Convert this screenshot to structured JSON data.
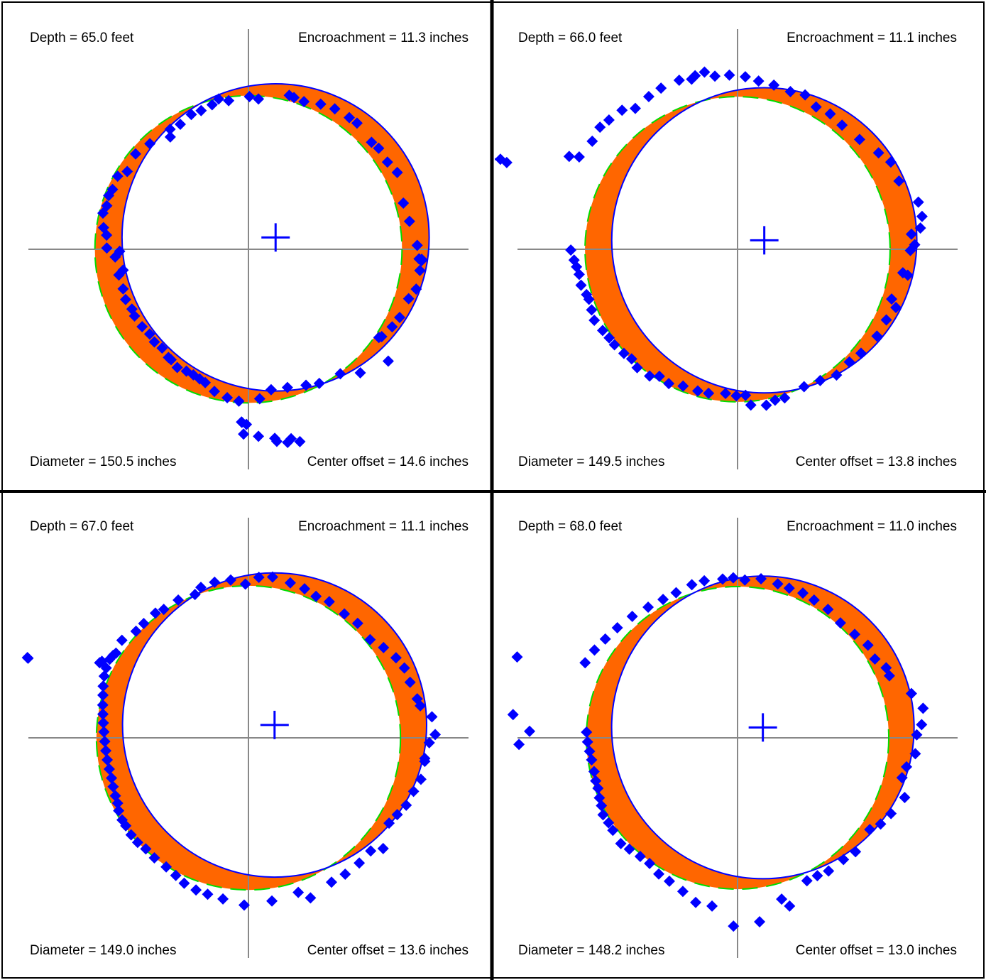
{
  "colors": {
    "points": "#0000ff",
    "fit_circle": "#0000ff",
    "nominal_circle": "#00dd00",
    "encroachment_fill": "#ff6600",
    "axes": "#888888",
    "borders": "#000000"
  },
  "panels": [
    {
      "depth_label": "Depth = 65.0 feet",
      "encroachment_label": "Encroachment = 11.3 inches",
      "diameter_label": "Diameter = 150.5 inches",
      "offset_label": "Center offset = 14.6 inches"
    },
    {
      "depth_label": "Depth = 66.0 feet",
      "encroachment_label": "Encroachment = 11.1 inches",
      "diameter_label": "Diameter = 149.5 inches",
      "offset_label": "Center offset = 13.8 inches"
    },
    {
      "depth_label": "Depth = 67.0 feet",
      "encroachment_label": "Encroachment = 11.1 inches",
      "diameter_label": "Diameter = 149.0 inches",
      "offset_label": "Center offset = 13.6 inches"
    },
    {
      "depth_label": "Depth = 68.0 feet",
      "encroachment_label": "Encroachment = 11.0 inches",
      "diameter_label": "Diameter = 148.2 inches",
      "offset_label": "Center offset = 13.0 inches"
    }
  ],
  "chart_data": [
    {
      "type": "scatter",
      "depth_ft": 65.0,
      "encroachment_in": 11.3,
      "diameter_in": 150.5,
      "center_offset_in": 14.6,
      "nominal_diameter_in": 150.5,
      "fit_center": [
        13.3,
        5.8
      ],
      "grid": false,
      "points": [
        [
          -14.6,
          73.6
        ],
        [
          -9.7,
          72.8
        ],
        [
          0.5,
          74.8
        ],
        [
          4.9,
          73.6
        ],
        [
          20,
          75.4
        ],
        [
          22.3,
          74.3
        ],
        [
          27.2,
          72.3
        ],
        [
          35.4,
          71.1
        ],
        [
          42.3,
          68.8
        ],
        [
          49.4,
          64.5
        ],
        [
          53.2,
          61.8
        ],
        [
          60.3,
          52.4
        ],
        [
          63.8,
          49.5
        ],
        [
          68.1,
          42.7
        ],
        [
          72.9,
          37.6
        ],
        [
          75.9,
          22.6
        ],
        [
          78.9,
          13.7
        ],
        [
          82.7,
          1.9
        ],
        [
          83.6,
          -4.7
        ],
        [
          84.8,
          -5.6
        ],
        [
          84.9,
          -4.9
        ],
        [
          84,
          -10.4
        ],
        [
          82.2,
          -19.5
        ],
        [
          78.5,
          -24.2
        ],
        [
          74.1,
          -33.4
        ],
        [
          70.4,
          -38
        ],
        [
          63.9,
          -43.2
        ],
        [
          65.3,
          -42.8
        ],
        [
          68.5,
          -54.8
        ],
        [
          54.8,
          -60.5
        ],
        [
          45,
          -61
        ],
        [
          34.7,
          -65.7
        ],
        [
          28.2,
          -66.6
        ],
        [
          19.1,
          -67.7
        ],
        [
          11.1,
          -68.8
        ],
        [
          5.5,
          -73.2
        ],
        [
          -4.7,
          -74.4
        ],
        [
          -10.4,
          -72.7
        ],
        [
          -16.7,
          -69.6
        ],
        [
          -21.2,
          -65.3
        ],
        [
          -23.9,
          -63.5
        ],
        [
          -27,
          -61.5
        ],
        [
          -30.4,
          -59.7
        ],
        [
          -34.9,
          -57.9
        ],
        [
          -37.9,
          -54.1
        ],
        [
          -39.2,
          -53
        ],
        [
          -42.3,
          -48.4
        ],
        [
          -46.1,
          -45.4
        ],
        [
          -48.4,
          -41.5
        ],
        [
          -52.1,
          -37.9
        ],
        [
          -55.8,
          -32.7
        ],
        [
          -57.1,
          -29.3
        ],
        [
          -60.2,
          -24.6
        ],
        [
          -61.4,
          -19.4
        ],
        [
          -63.5,
          -12.6
        ],
        [
          -61.4,
          -10.2
        ],
        [
          -65.3,
          -3.8
        ],
        [
          -63.1,
          -1
        ],
        [
          -69.4,
          0.6
        ],
        [
          -69.5,
          6.9
        ],
        [
          -71,
          10.6
        ],
        [
          -71.3,
          17.7
        ],
        [
          -69.4,
          21.3
        ],
        [
          -64.1,
          35.8
        ],
        [
          -66.6,
          29.3
        ],
        [
          -68.5,
          26.3
        ],
        [
          -59.4,
          38.1
        ],
        [
          -55.3,
          46.7
        ],
        [
          -48.3,
          51.7
        ],
        [
          -38.3,
          55
        ],
        [
          -38.4,
          58.8
        ],
        [
          -33.4,
          61.2
        ],
        [
          -28,
          66
        ],
        [
          -23.2,
          67.9
        ],
        [
          -17.8,
          70.8
        ],
        [
          -3.4,
          -84.6
        ],
        [
          -3.2,
          -84.8
        ],
        [
          -1,
          -85.8
        ],
        [
          4.9,
          -91.6
        ],
        [
          -2.4,
          -90.5
        ],
        [
          13.9,
          -94.1
        ],
        [
          12.9,
          -92.6
        ],
        [
          19.2,
          -94.6
        ],
        [
          20.9,
          -92.8
        ],
        [
          25.2,
          -94.2
        ]
      ]
    },
    {
      "type": "scatter",
      "depth_ft": 66.0,
      "encroachment_in": 11.1,
      "diameter_in": 149.5,
      "center_offset_in": 13.8,
      "nominal_diameter_in": 149.5,
      "fit_center": [
        13.1,
        4.4
      ],
      "grid": false,
      "points": [
        [
          -116.2,
          44.1
        ],
        [
          -121.1,
          44.1
        ],
        [
          -113.1,
          42.5
        ],
        [
          -82.5,
          45.5
        ],
        [
          -77.6,
          45.2
        ],
        [
          -71.2,
          52.9
        ],
        [
          -67.4,
          59.8
        ],
        [
          -63,
          63.3
        ],
        [
          -56.6,
          68.1
        ],
        [
          -50.1,
          69
        ],
        [
          -43.5,
          74.8
        ],
        [
          -37.5,
          78.9
        ],
        [
          -28.6,
          82.8
        ],
        [
          -22.5,
          83.3
        ],
        [
          -20.8,
          85
        ],
        [
          -16.2,
          86.8
        ],
        [
          -11.1,
          84.8
        ],
        [
          -4,
          85.3
        ],
        [
          3.8,
          84.5
        ],
        [
          10.3,
          82.4
        ],
        [
          17.8,
          80.4
        ],
        [
          25.9,
          77.2
        ],
        [
          33.1,
          75.6
        ],
        [
          38.5,
          69.7
        ],
        [
          45.4,
          66.3
        ],
        [
          51.2,
          60.8
        ],
        [
          59.8,
          53.8
        ],
        [
          69.1,
          47.2
        ],
        [
          75.1,
          42.7
        ],
        [
          79.1,
          33.4
        ],
        [
          88.6,
          23.1
        ],
        [
          90.4,
          16.1
        ],
        [
          89.6,
          10.4
        ],
        [
          85.2,
          7.4
        ],
        [
          86.8,
          2.2
        ],
        [
          84.7,
          -0.6
        ],
        [
          81,
          -11.5
        ],
        [
          83.4,
          -12.7
        ],
        [
          75.5,
          -24.4
        ],
        [
          77.6,
          -28.5
        ],
        [
          72.9,
          -34.6
        ],
        [
          68.3,
          -42.5
        ],
        [
          60.5,
          -50.9
        ],
        [
          54.8,
          -55.2
        ],
        [
          48.5,
          -61.6
        ],
        [
          40.5,
          -64.3
        ],
        [
          32.6,
          -67.3
        ],
        [
          23.1,
          -72.8
        ],
        [
          18.4,
          -73.9
        ],
        [
          14.1,
          -76.4
        ],
        [
          6.5,
          -76.3
        ],
        [
          3.9,
          -71.5
        ],
        [
          -0.6,
          -71.8
        ],
        [
          -5.9,
          -70.6
        ],
        [
          -14.2,
          -70.5
        ],
        [
          -19.5,
          -69.4
        ],
        [
          -26.7,
          -67
        ],
        [
          -33.7,
          -65.8
        ],
        [
          -38.3,
          -62.2
        ],
        [
          -43.1,
          -62.1
        ],
        [
          -49.2,
          -58
        ],
        [
          -51.9,
          -53.7
        ],
        [
          -55.7,
          -51
        ],
        [
          -60.3,
          -46.8
        ],
        [
          -62.9,
          -43.4
        ],
        [
          -66.1,
          -39.8
        ],
        [
          -70.2,
          -34.8
        ],
        [
          -71.5,
          -29.7
        ],
        [
          -72.8,
          -24.5
        ],
        [
          -74,
          -22.2
        ],
        [
          -76.7,
          -17.6
        ],
        [
          -77.6,
          -12.3
        ],
        [
          -78.9,
          -8.6
        ],
        [
          -80.1,
          -5.3
        ],
        [
          -81.7,
          -0.4
        ]
      ]
    },
    {
      "type": "scatter",
      "depth_ft": 67.0,
      "encroachment_in": 11.1,
      "diameter_in": 149.0,
      "center_offset_in": 13.6,
      "nominal_diameter_in": 149.0,
      "fit_center": [
        12.8,
        6.3
      ],
      "grid": false,
      "points": [
        [
          -108.3,
          39.3
        ],
        [
          -108,
          39
        ],
        [
          -72.9,
          36.8
        ],
        [
          -71.8,
          37.5
        ],
        [
          -66.3,
          40.4
        ],
        [
          -62,
          47.8
        ],
        [
          -55.1,
          52.2
        ],
        [
          -51.3,
          56
        ],
        [
          -45.6,
          61.1
        ],
        [
          -41.5,
          62.9
        ],
        [
          -34.4,
          67.5
        ],
        [
          -26.2,
          70.2
        ],
        [
          -23.3,
          73.7
        ],
        [
          -16.6,
          76.2
        ],
        [
          -8.7,
          77.3
        ],
        [
          -1.5,
          75.3
        ],
        [
          5.1,
          78.6
        ],
        [
          11.8,
          78.8
        ],
        [
          20.5,
          75.9
        ],
        [
          27.5,
          73
        ],
        [
          33.1,
          69.3
        ],
        [
          39.6,
          66.7
        ],
        [
          47,
          60.7
        ],
        [
          53.5,
          56.1
        ],
        [
          59.6,
          48.1
        ],
        [
          66.2,
          44.2
        ],
        [
          72.3,
          39.2
        ],
        [
          76.4,
          34.2
        ],
        [
          79.2,
          27.2
        ],
        [
          82.7,
          19.1
        ],
        [
          84.2,
          15.7
        ],
        [
          89.9,
          10.3
        ],
        [
          91.5,
          1.6
        ],
        [
          88.6,
          -2.4
        ],
        [
          86.4,
          -10.1
        ],
        [
          86.4,
          -11.5
        ],
        [
          84.5,
          -20.3
        ],
        [
          80.9,
          -26.2
        ],
        [
          77.3,
          -33
        ],
        [
          72.9,
          -37.6
        ],
        [
          68.9,
          -41.8
        ],
        [
          66,
          -54.2
        ],
        [
          59.9,
          -55.4
        ],
        [
          54.3,
          -61.3
        ],
        [
          47.4,
          -66.8
        ],
        [
          40.7,
          -70.7
        ],
        [
          30.4,
          -78.4
        ],
        [
          24.4,
          -75.7
        ],
        [
          11.5,
          -79.9
        ],
        [
          -2.1,
          -81.9
        ],
        [
          -12.5,
          -78.9
        ],
        [
          -20,
          -76.6
        ],
        [
          -25.7,
          -74.5
        ],
        [
          -31.5,
          -71.2
        ],
        [
          -35.6,
          -67.4
        ],
        [
          -40.3,
          -63.2
        ],
        [
          -46.1,
          -58.8
        ],
        [
          -50.3,
          -54.4
        ],
        [
          -54.3,
          -51.2
        ],
        [
          -57.5,
          -47.5
        ],
        [
          -60.1,
          -43.1
        ],
        [
          -61.9,
          -40.2
        ],
        [
          -63.6,
          -35.7
        ],
        [
          -64.1,
          -32
        ],
        [
          -65.2,
          -28.4
        ],
        [
          -66.3,
          -23.9
        ],
        [
          -67.1,
          -19.7
        ],
        [
          -68.2,
          -15.3
        ],
        [
          -69.2,
          -10.8
        ],
        [
          -69.9,
          -6.3
        ],
        [
          -70.4,
          -1.8
        ],
        [
          -70.8,
          2.9
        ],
        [
          -71.1,
          7.3
        ],
        [
          -71.3,
          11.6
        ],
        [
          -71.4,
          16.1
        ],
        [
          -71.3,
          20.9
        ],
        [
          -71.2,
          25.3
        ],
        [
          -70.7,
          30.2
        ],
        [
          -69.7,
          34.2
        ],
        [
          -68,
          38.5
        ],
        [
          -64.9,
          41.5
        ]
      ]
    },
    {
      "type": "scatter",
      "depth_ft": 68.0,
      "encroachment_in": 11.0,
      "diameter_in": 148.2,
      "center_offset_in": 13.0,
      "nominal_diameter_in": 148.2,
      "fit_center": [
        12.4,
        5.1
      ],
      "grid": false,
      "points": [
        [
          -108,
          39.6
        ],
        [
          -110,
          11.4
        ],
        [
          -101.9,
          3.2
        ],
        [
          -107.1,
          -3.2
        ],
        [
          -74.7,
          36.8
        ],
        [
          -70.1,
          43
        ],
        [
          -64.8,
          48.4
        ],
        [
          -58.9,
          53.9
        ],
        [
          -51.6,
          59.5
        ],
        [
          -43.8,
          64
        ],
        [
          -36.5,
          67.8
        ],
        [
          -30.1,
          71.1
        ],
        [
          -22.4,
          75
        ],
        [
          -16.3,
          76.9
        ],
        [
          -7.3,
          77.8
        ],
        [
          -2.1,
          78.4
        ],
        [
          3.6,
          77.3
        ],
        [
          11.5,
          77.9
        ],
        [
          19.7,
          75.4
        ],
        [
          25.3,
          73.3
        ],
        [
          32,
          70.9
        ],
        [
          37.5,
          67.5
        ],
        [
          44.3,
          62.9
        ],
        [
          50.4,
          56.3
        ],
        [
          57.4,
          50.7
        ],
        [
          63.9,
          45.4
        ],
        [
          67.3,
          38.6
        ],
        [
          72.8,
          34.3
        ],
        [
          74.4,
          30.4
        ],
        [
          85.2,
          21.7
        ],
        [
          90.9,
          14.5
        ],
        [
          90.2,
          6.5
        ],
        [
          87.8,
          1.5
        ],
        [
          87.1,
          -7.8
        ],
        [
          82.8,
          -14.2
        ],
        [
          80.6,
          -19.5
        ],
        [
          81.9,
          -29.2
        ],
        [
          75.2,
          -37.1
        ],
        [
          70.1,
          -42.2
        ],
        [
          64.8,
          -44.9
        ],
        [
          57.8,
          -55.8
        ],
        [
          51.9,
          -59.6
        ],
        [
          44.6,
          -65.2
        ],
        [
          39.1,
          -67.5
        ],
        [
          34,
          -70
        ],
        [
          25.5,
          -82.4
        ],
        [
          21.6,
          -79
        ],
        [
          10.8,
          -90.1
        ],
        [
          -2,
          -92.2
        ],
        [
          -12.5,
          -82.4
        ],
        [
          -20.5,
          -80.6
        ],
        [
          -26.8,
          -75.2
        ],
        [
          -33.4,
          -70.2
        ],
        [
          -38.6,
          -66.7
        ],
        [
          -43.1,
          -61.5
        ],
        [
          -47.7,
          -58.1
        ],
        [
          -53,
          -54.5
        ],
        [
          -57.2,
          -51.8
        ],
        [
          -61.1,
          -45.3
        ],
        [
          -63.2,
          -41.6
        ],
        [
          -65.9,
          -37.7
        ],
        [
          -66.7,
          -33.2
        ],
        [
          -67.7,
          -29.4
        ],
        [
          -68.4,
          -24.7
        ],
        [
          -69.5,
          -21.1
        ],
        [
          -70.3,
          -16.5
        ],
        [
          -71.5,
          -10.8
        ],
        [
          -72.5,
          -6.6
        ],
        [
          -73.5,
          -2
        ],
        [
          -74,
          2.8
        ]
      ]
    }
  ]
}
